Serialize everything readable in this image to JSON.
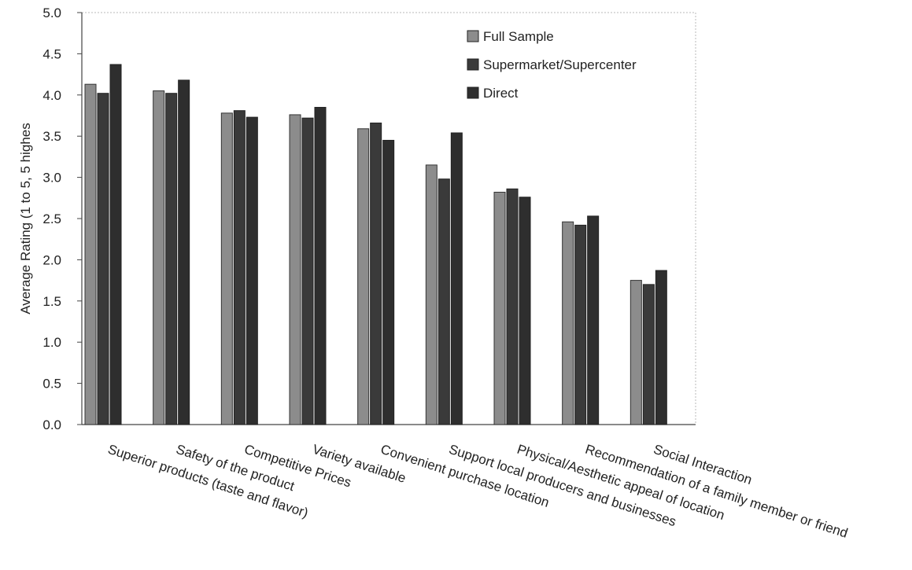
{
  "chart_data": {
    "type": "bar",
    "title": "",
    "xlabel": "",
    "ylabel": "Average Rating (1 to 5, 5 highes",
    "ylim": [
      0,
      5
    ],
    "y_ticks": [
      "0.0",
      "0.5",
      "1.0",
      "1.5",
      "2.0",
      "2.5",
      "3.0",
      "3.5",
      "4.0",
      "4.5",
      "5.0"
    ],
    "grid": false,
    "legend_position": "top-right",
    "categories": [
      "Superior products (taste and flavor)",
      "Safety of the product",
      "Competitive Prices",
      "Variety available",
      "Convenient purchase location",
      "Support local producers and businesses",
      "Physical/Aesthetic appeal of location",
      "Recommendation of a family member or friend",
      "Social Interaction"
    ],
    "series": [
      {
        "name": "Full Sample",
        "color": "#8c8c8c",
        "values": [
          4.13,
          4.05,
          3.78,
          3.76,
          3.59,
          3.15,
          2.82,
          2.46,
          1.75
        ]
      },
      {
        "name": "Supermarket/Supercenter",
        "color": "#3a3a3a",
        "values": [
          4.02,
          4.02,
          3.81,
          3.72,
          3.66,
          2.98,
          2.86,
          2.42,
          1.7
        ]
      },
      {
        "name": "Direct",
        "color": "#2e2e2e",
        "values": [
          4.37,
          4.18,
          3.73,
          3.85,
          3.45,
          3.54,
          2.76,
          2.53,
          1.87
        ]
      }
    ]
  }
}
